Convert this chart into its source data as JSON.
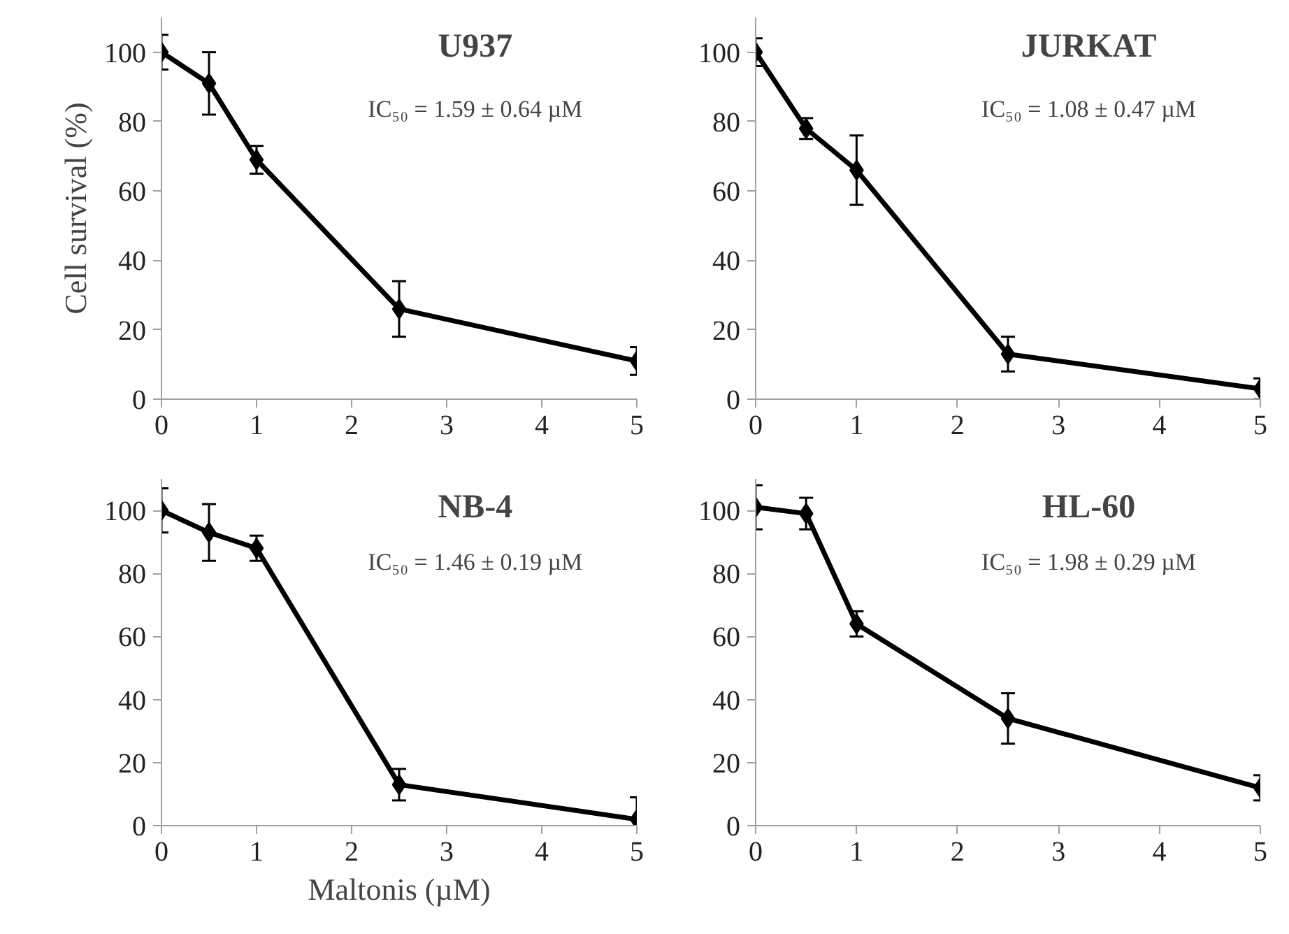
{
  "chart_data": [
    {
      "type": "line",
      "title": "U937",
      "ylabel": "Cell survival (%)",
      "annotations": [
        "IC₅₀ = 1.59 ± 0.64 µM"
      ],
      "x": [
        0,
        0.5,
        1,
        2.5,
        5
      ],
      "values": [
        100,
        91,
        69,
        26,
        11
      ],
      "errors": [
        5,
        9,
        4,
        8,
        4
      ],
      "color": "#000000",
      "marker": "diamond",
      "xlim": [
        0,
        5
      ],
      "ylim": [
        0,
        110
      ],
      "xticks": [
        0,
        1,
        2,
        3,
        4,
        5
      ],
      "yticks": [
        0,
        20,
        40,
        60,
        80,
        100
      ],
      "grid": false
    },
    {
      "type": "line",
      "title": "JURKAT",
      "annotations": [
        "IC₅₀ = 1.08 ± 0.47 µM"
      ],
      "x": [
        0,
        0.5,
        1,
        2.5,
        5
      ],
      "values": [
        100,
        78,
        66,
        13,
        3
      ],
      "errors": [
        4,
        3,
        10,
        5,
        3
      ],
      "color": "#000000",
      "marker": "diamond",
      "xlim": [
        0,
        5
      ],
      "ylim": [
        0,
        110
      ],
      "xticks": [
        0,
        1,
        2,
        3,
        4,
        5
      ],
      "yticks": [
        0,
        20,
        40,
        60,
        80,
        100
      ],
      "grid": false
    },
    {
      "type": "line",
      "title": "NB-4",
      "xlabel": "Maltonis (µM)",
      "annotations": [
        "IC₅₀ = 1.46 ± 0.19 µM"
      ],
      "x": [
        0,
        0.5,
        1,
        2.5,
        5
      ],
      "values": [
        100,
        93,
        88,
        13,
        2
      ],
      "errors": [
        7,
        9,
        4,
        5,
        7
      ],
      "color": "#000000",
      "marker": "diamond",
      "xlim": [
        0,
        5
      ],
      "ylim": [
        0,
        110
      ],
      "xticks": [
        0,
        1,
        2,
        3,
        4,
        5
      ],
      "yticks": [
        0,
        20,
        40,
        60,
        80,
        100
      ],
      "grid": false
    },
    {
      "type": "line",
      "title": "HL-60",
      "annotations": [
        "IC₅₀ = 1.98 ± 0.29 µM"
      ],
      "x": [
        0,
        0.5,
        1,
        2.5,
        5
      ],
      "values": [
        101,
        99,
        64,
        34,
        12
      ],
      "errors": [
        7,
        5,
        4,
        8,
        4
      ],
      "color": "#000000",
      "marker": "diamond",
      "xlim": [
        0,
        5
      ],
      "ylim": [
        0,
        110
      ],
      "xticks": [
        0,
        1,
        2,
        3,
        4,
        5
      ],
      "yticks": [
        0,
        20,
        40,
        60,
        80,
        100
      ],
      "grid": false
    }
  ]
}
